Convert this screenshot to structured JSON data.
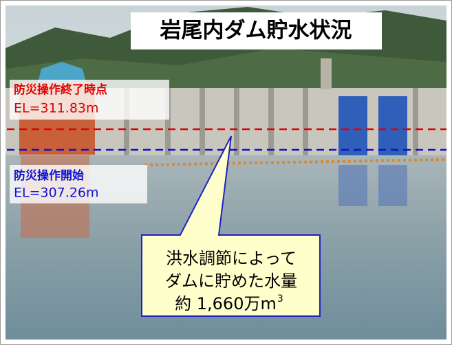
{
  "title": "岩尾内ダム貯水状況",
  "end_level": {
    "label": "防災操作終了時点",
    "elevation": "EL=311.83m"
  },
  "start_level": {
    "label": "防災操作開始",
    "elevation": "EL=307.26m"
  },
  "callout": {
    "lines": [
      "洪水調節によって",
      "ダムに貯めた水量"
    ],
    "volume": "約 1,660万m",
    "volume_exponent": "3"
  }
}
